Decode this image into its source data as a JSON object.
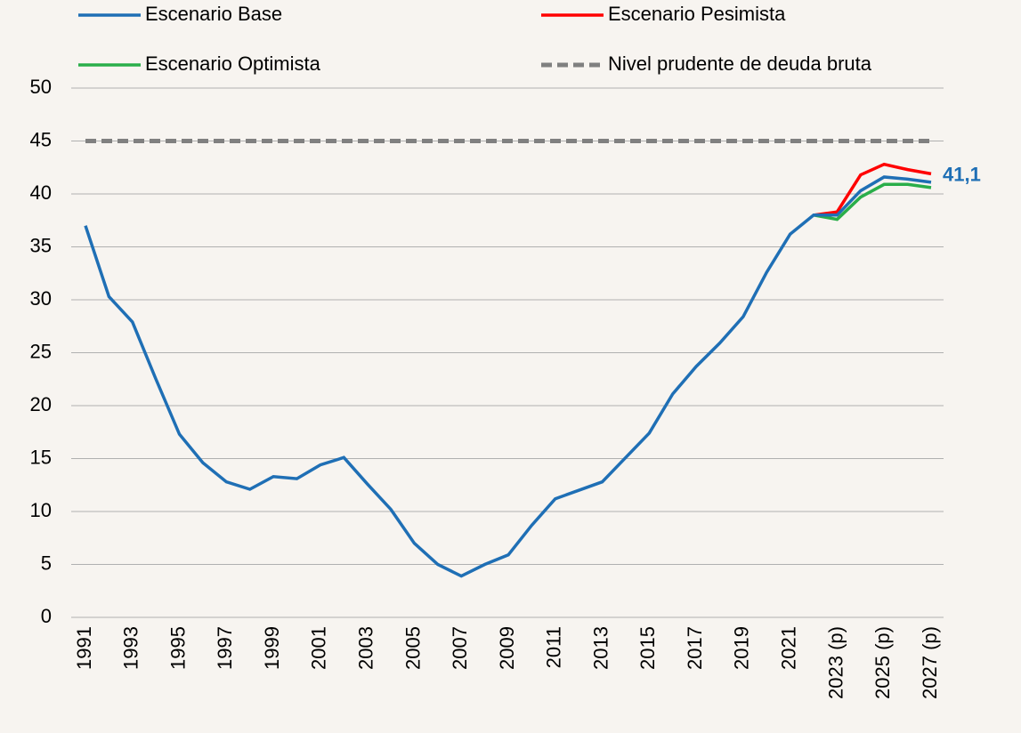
{
  "chart_data": {
    "type": "line",
    "categories": [
      "1991",
      null,
      "1993",
      null,
      "1995",
      null,
      "1997",
      null,
      "1999",
      null,
      "2001",
      null,
      "2003",
      null,
      "2005",
      null,
      "2007",
      null,
      "2009",
      null,
      "2011",
      null,
      "2013",
      null,
      "2015",
      null,
      "2017",
      null,
      "2019",
      null,
      "2021",
      null,
      "2023 (p)",
      null,
      "2025 (p)",
      null,
      "2027 (p)"
    ],
    "series": [
      {
        "name": "Escenario Base",
        "color": "#1f6fb5",
        "values": [
          37.0,
          30.3,
          27.9,
          22.5,
          17.3,
          14.6,
          12.8,
          12.1,
          13.3,
          13.1,
          14.4,
          15.1,
          12.6,
          10.2,
          7.0,
          5.0,
          3.9,
          5.0,
          5.9,
          8.7,
          11.2,
          12.0,
          12.8,
          15.1,
          17.4,
          21.1,
          23.7,
          25.9,
          28.4,
          32.6,
          36.2,
          38.0,
          38.0,
          40.3,
          41.6,
          41.4,
          41.1
        ],
        "value_labels": [
          null,
          null,
          null,
          null,
          null,
          null,
          null,
          null,
          null,
          null,
          null,
          null,
          null,
          null,
          null,
          null,
          null,
          null,
          null,
          null,
          null,
          null,
          null,
          null,
          null,
          null,
          null,
          null,
          null,
          null,
          null,
          null,
          null,
          null,
          null,
          null,
          "41,1"
        ]
      },
      {
        "name": "Escenario Pesimista",
        "color": "#ff0000",
        "values": [
          null,
          null,
          null,
          null,
          null,
          null,
          null,
          null,
          null,
          null,
          null,
          null,
          null,
          null,
          null,
          null,
          null,
          null,
          null,
          null,
          null,
          null,
          null,
          null,
          null,
          null,
          null,
          null,
          null,
          null,
          null,
          38.0,
          38.3,
          41.8,
          42.8,
          42.3,
          41.9
        ]
      },
      {
        "name": "Escenario Optimista",
        "color": "#2aae4a",
        "values": [
          null,
          null,
          null,
          null,
          null,
          null,
          null,
          null,
          null,
          null,
          null,
          null,
          null,
          null,
          null,
          null,
          null,
          null,
          null,
          null,
          null,
          null,
          null,
          null,
          null,
          null,
          null,
          null,
          null,
          null,
          null,
          38.0,
          37.6,
          39.7,
          40.9,
          40.9,
          40.6
        ]
      },
      {
        "name": "Nivel prudente de deuda bruta",
        "color": "#808080",
        "dashed": true,
        "values": [
          45,
          45,
          45,
          45,
          45,
          45,
          45,
          45,
          45,
          45,
          45,
          45,
          45,
          45,
          45,
          45,
          45,
          45,
          45,
          45,
          45,
          45,
          45,
          45,
          45,
          45,
          45,
          45,
          45,
          45,
          45,
          45,
          45,
          45,
          45,
          45,
          45
        ]
      }
    ],
    "ylim": [
      0,
      50
    ],
    "yticks": [
      0,
      5,
      10,
      15,
      20,
      25,
      30,
      35,
      40,
      45,
      50
    ],
    "grid": true
  }
}
